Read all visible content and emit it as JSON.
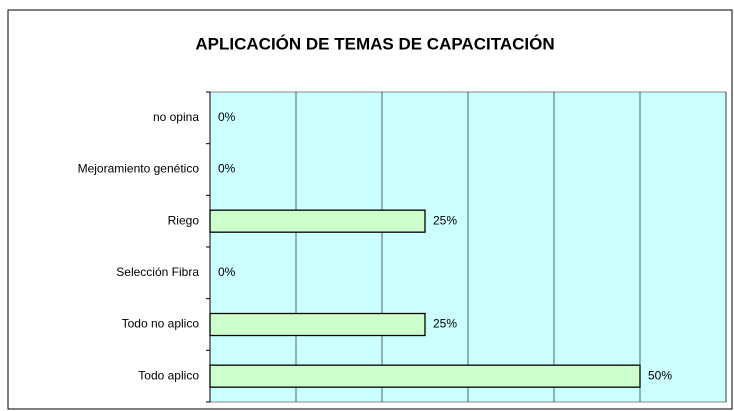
{
  "chart_data": {
    "type": "bar",
    "orientation": "horizontal",
    "title": "APLICACIÓN DE TEMAS DE CAPACITACIÓN",
    "categories": [
      "no opina",
      "Mejoramiento genético",
      "Riego",
      "Selección Fibra",
      "Todo no aplico",
      "Todo aplico"
    ],
    "values": [
      0,
      0,
      25,
      0,
      25,
      50
    ],
    "value_labels": [
      "0%",
      "0%",
      "25%",
      "0%",
      "25%",
      "50%"
    ],
    "color": "#ccffcc",
    "plot_background": "#ccffff",
    "xlim": [
      0,
      60
    ],
    "xticks": [
      0,
      10,
      20,
      30,
      40,
      50,
      60
    ],
    "grid": true
  }
}
